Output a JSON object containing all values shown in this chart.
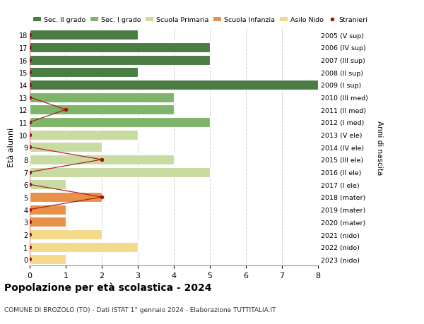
{
  "ages": [
    0,
    1,
    2,
    3,
    4,
    5,
    6,
    7,
    8,
    9,
    10,
    11,
    12,
    13,
    14,
    15,
    16,
    17,
    18
  ],
  "right_labels": [
    "2023 (nido)",
    "2022 (nido)",
    "2021 (nido)",
    "2020 (mater)",
    "2019 (mater)",
    "2018 (mater)",
    "2017 (I ele)",
    "2016 (II ele)",
    "2015 (III ele)",
    "2014 (IV ele)",
    "2013 (V ele)",
    "2012 (I med)",
    "2011 (II med)",
    "2010 (III med)",
    "2009 (I sup)",
    "2008 (II sup)",
    "2007 (III sup)",
    "2006 (IV sup)",
    "2005 (V sup)"
  ],
  "bar_values": [
    1,
    3,
    2,
    1,
    1,
    2,
    1,
    5,
    4,
    2,
    3,
    5,
    4,
    4,
    8,
    3,
    5,
    5,
    3
  ],
  "bar_colors": [
    "#f5d98a",
    "#f5d98a",
    "#f5d98a",
    "#e8914a",
    "#e8914a",
    "#e8914a",
    "#c8dba0",
    "#c8dba0",
    "#c8dba0",
    "#c8dba0",
    "#c8dba0",
    "#7fb56a",
    "#7fb56a",
    "#7fb56a",
    "#4a7c44",
    "#4a7c44",
    "#4a7c44",
    "#4a7c44",
    "#4a7c44"
  ],
  "legend_labels": [
    "Sec. II grado",
    "Sec. I grado",
    "Scuola Primaria",
    "Scuola Infanzia",
    "Asilo Nido",
    "Stranieri"
  ],
  "legend_colors": [
    "#4a7c44",
    "#7fb56a",
    "#c8dba0",
    "#e8914a",
    "#f5d98a",
    "#cc2222"
  ],
  "title": "Popolazione per età scolastica - 2024",
  "subtitle": "COMUNE DI BROZOLO (TO) - Dati ISTAT 1° gennaio 2024 - Elaborazione TUTTITALIA.IT",
  "ylabel": "Età alunni",
  "right_ylabel": "Anni di nascita",
  "xlim": [
    0,
    8
  ],
  "ylim": [
    -0.5,
    18.5
  ],
  "background_color": "#ffffff",
  "grid_color": "#cccccc",
  "bar_height": 0.8,
  "stranieri_color": "#aa1111",
  "stranieri_dot_x": [
    0,
    0,
    0,
    0,
    0,
    2,
    0,
    0,
    2,
    0,
    0,
    0,
    1,
    0,
    0,
    0,
    0,
    0,
    0
  ]
}
